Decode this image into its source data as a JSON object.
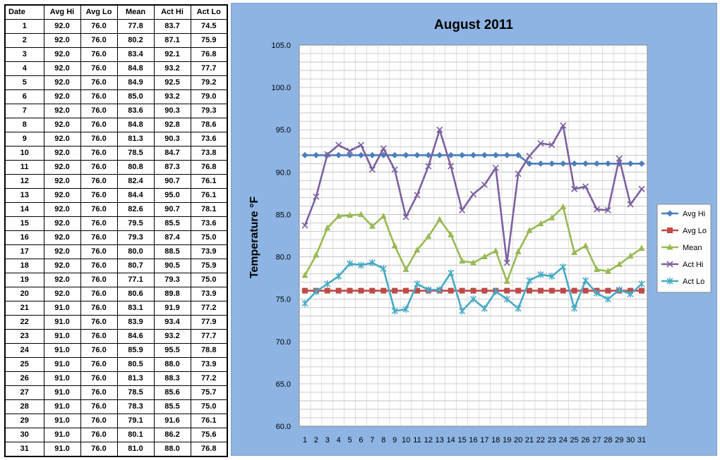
{
  "table": {
    "headers": [
      "Date",
      "Avg Hi",
      "Avg Lo",
      "Mean",
      "Act Hi",
      "Act Lo"
    ],
    "rows": [
      [
        "1",
        "92.0",
        "76.0",
        "77.8",
        "83.7",
        "74.5"
      ],
      [
        "2",
        "92.0",
        "76.0",
        "80.2",
        "87.1",
        "75.9"
      ],
      [
        "3",
        "92.0",
        "76.0",
        "83.4",
        "92.1",
        "76.8"
      ],
      [
        "4",
        "92.0",
        "76.0",
        "84.8",
        "93.2",
        "77.7"
      ],
      [
        "5",
        "92.0",
        "76.0",
        "84.9",
        "92.5",
        "79.2"
      ],
      [
        "6",
        "92.0",
        "76.0",
        "85.0",
        "93.2",
        "79.0"
      ],
      [
        "7",
        "92.0",
        "76.0",
        "83.6",
        "90.3",
        "79.3"
      ],
      [
        "8",
        "92.0",
        "76.0",
        "84.8",
        "92.8",
        "78.6"
      ],
      [
        "9",
        "92.0",
        "76.0",
        "81.3",
        "90.3",
        "73.6"
      ],
      [
        "10",
        "92.0",
        "76.0",
        "78.5",
        "84.7",
        "73.8"
      ],
      [
        "11",
        "92.0",
        "76.0",
        "80.8",
        "87.3",
        "76.8"
      ],
      [
        "12",
        "92.0",
        "76.0",
        "82.4",
        "90.7",
        "76.1"
      ],
      [
        "13",
        "92.0",
        "76.0",
        "84.4",
        "95.0",
        "76.1"
      ],
      [
        "14",
        "92.0",
        "76.0",
        "82.6",
        "90.7",
        "78.1"
      ],
      [
        "15",
        "92.0",
        "76.0",
        "79.5",
        "85.5",
        "73.6"
      ],
      [
        "16",
        "92.0",
        "76.0",
        "79.3",
        "87.4",
        "75.0"
      ],
      [
        "17",
        "92.0",
        "76.0",
        "80.0",
        "88.5",
        "73.9"
      ],
      [
        "18",
        "92.0",
        "76.0",
        "80.7",
        "90.5",
        "75.9"
      ],
      [
        "19",
        "92.0",
        "76.0",
        "77.1",
        "79.3",
        "75.0"
      ],
      [
        "20",
        "92.0",
        "76.0",
        "80.6",
        "89.8",
        "73.9"
      ],
      [
        "21",
        "91.0",
        "76.0",
        "83.1",
        "91.9",
        "77.2"
      ],
      [
        "22",
        "91.0",
        "76.0",
        "83.9",
        "93.4",
        "77.9"
      ],
      [
        "23",
        "91.0",
        "76.0",
        "84.6",
        "93.2",
        "77.7"
      ],
      [
        "24",
        "91.0",
        "76.0",
        "85.9",
        "95.5",
        "78.8"
      ],
      [
        "25",
        "91.0",
        "76.0",
        "80.5",
        "88.0",
        "73.9"
      ],
      [
        "26",
        "91.0",
        "76.0",
        "81.3",
        "88.3",
        "77.2"
      ],
      [
        "27",
        "91.0",
        "76.0",
        "78.5",
        "85.6",
        "75.7"
      ],
      [
        "28",
        "91.0",
        "76.0",
        "78.3",
        "85.5",
        "75.0"
      ],
      [
        "29",
        "91.0",
        "76.0",
        "79.1",
        "91.6",
        "76.1"
      ],
      [
        "30",
        "91.0",
        "76.0",
        "80.1",
        "86.2",
        "75.6"
      ],
      [
        "31",
        "91.0",
        "76.0",
        "81.0",
        "88.0",
        "76.8"
      ]
    ]
  },
  "chart_data": {
    "type": "line",
    "title": "August 2011",
    "xlabel": "",
    "ylabel": "Temperature °F",
    "x": [
      1,
      2,
      3,
      4,
      5,
      6,
      7,
      8,
      9,
      10,
      11,
      12,
      13,
      14,
      15,
      16,
      17,
      18,
      19,
      20,
      21,
      22,
      23,
      24,
      25,
      26,
      27,
      28,
      29,
      30,
      31
    ],
    "x_tick_labels": [
      "1",
      "2",
      "3",
      "4",
      "5",
      "6",
      "7",
      "8",
      "9",
      "10",
      "11",
      "12",
      "13",
      "14",
      "15",
      "16",
      "17",
      "18",
      "19",
      "20",
      "21",
      "22",
      "23",
      "24",
      "25",
      "26",
      "27",
      "28",
      "29",
      "30",
      "31"
    ],
    "ylim": [
      60,
      105
    ],
    "y_ticks": [
      60,
      65,
      70,
      75,
      80,
      85,
      90,
      95,
      100,
      105
    ],
    "y_tick_labels": [
      "60.0",
      "65.0",
      "70.0",
      "75.0",
      "80.0",
      "85.0",
      "90.0",
      "95.0",
      "100.0",
      "105.0"
    ],
    "grid": true,
    "legend_position": "right",
    "series": [
      {
        "name": "Avg Hi",
        "color": "#4a7ebb",
        "marker": "diamond",
        "values": [
          92,
          92,
          92,
          92,
          92,
          92,
          92,
          92,
          92,
          92,
          92,
          92,
          92,
          92,
          92,
          92,
          92,
          92,
          92,
          92,
          91,
          91,
          91,
          91,
          91,
          91,
          91,
          91,
          91,
          91,
          91
        ]
      },
      {
        "name": "Avg Lo",
        "color": "#be4b48",
        "marker": "square",
        "values": [
          76,
          76,
          76,
          76,
          76,
          76,
          76,
          76,
          76,
          76,
          76,
          76,
          76,
          76,
          76,
          76,
          76,
          76,
          76,
          76,
          76,
          76,
          76,
          76,
          76,
          76,
          76,
          76,
          76,
          76,
          76
        ]
      },
      {
        "name": "Mean",
        "color": "#98b954",
        "marker": "triangle",
        "values": [
          77.8,
          80.2,
          83.4,
          84.8,
          84.9,
          85.0,
          83.6,
          84.8,
          81.3,
          78.5,
          80.8,
          82.4,
          84.4,
          82.6,
          79.5,
          79.3,
          80.0,
          80.7,
          77.1,
          80.6,
          83.1,
          83.9,
          84.6,
          85.9,
          80.5,
          81.3,
          78.5,
          78.3,
          79.1,
          80.1,
          81.0
        ]
      },
      {
        "name": "Act Hi",
        "color": "#7d60a0",
        "marker": "x",
        "values": [
          83.7,
          87.1,
          92.1,
          93.2,
          92.5,
          93.2,
          90.3,
          92.8,
          90.3,
          84.7,
          87.3,
          90.7,
          95.0,
          90.7,
          85.5,
          87.4,
          88.5,
          90.5,
          79.3,
          89.8,
          91.9,
          93.4,
          93.2,
          95.5,
          88.0,
          88.3,
          85.6,
          85.5,
          91.6,
          86.2,
          88.0
        ]
      },
      {
        "name": "Act Lo",
        "color": "#46aac5",
        "marker": "star",
        "values": [
          74.5,
          75.9,
          76.8,
          77.7,
          79.2,
          79.0,
          79.3,
          78.6,
          73.6,
          73.8,
          76.8,
          76.1,
          76.1,
          78.1,
          73.6,
          75.0,
          73.9,
          75.9,
          75.0,
          73.9,
          77.2,
          77.9,
          77.7,
          78.8,
          73.9,
          77.2,
          75.7,
          75.0,
          76.1,
          75.6,
          76.8
        ]
      }
    ]
  }
}
